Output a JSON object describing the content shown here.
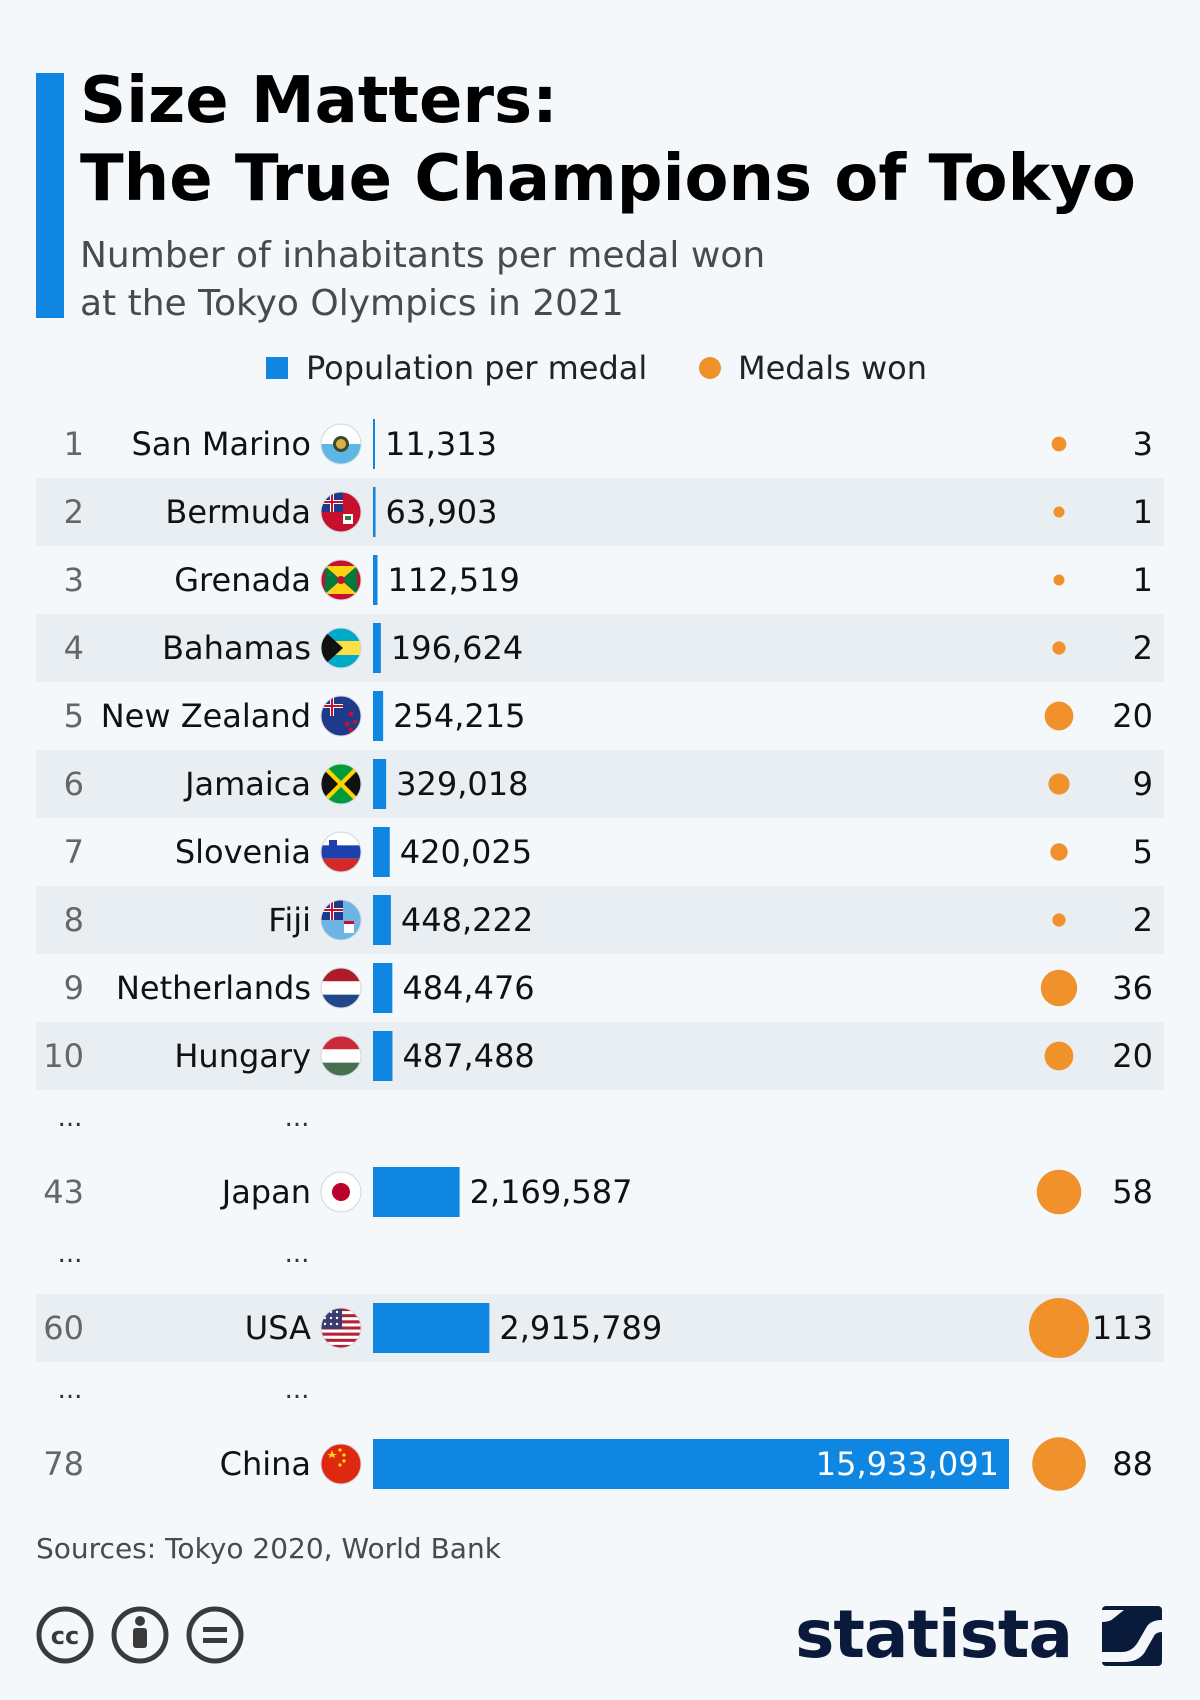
{
  "header": {
    "title_line1": "Size Matters:",
    "title_line2": "The True Champions of Tokyo",
    "subtitle_line1": "Number of inhabitants per medal won",
    "subtitle_line2": "at the Tokyo Olympics in 2021"
  },
  "legend": {
    "population": "Population per medal",
    "medals": "Medals won"
  },
  "colors": {
    "bar": "#0f86e2",
    "medal": "#f0912c",
    "row_alt": "#e9eef3"
  },
  "ellipsis": "...",
  "chart_data": {
    "type": "bar",
    "orientation": "horizontal",
    "title": "Size Matters: The True Champions of Tokyo",
    "subtitle": "Number of inhabitants per medal won at the Tokyo Olympics in 2021",
    "series": [
      {
        "name": "Population per medal"
      },
      {
        "name": "Medals won"
      }
    ],
    "rows": [
      {
        "rank": "1",
        "country": "San Marino",
        "flag": "san-marino-flag",
        "population_per_medal": 11313,
        "value_label": "11,313",
        "medals": 3
      },
      {
        "rank": "2",
        "country": "Bermuda",
        "flag": "bermuda-flag",
        "population_per_medal": 63903,
        "value_label": "63,903",
        "medals": 1
      },
      {
        "rank": "3",
        "country": "Grenada",
        "flag": "grenada-flag",
        "population_per_medal": 112519,
        "value_label": "112,519",
        "medals": 1
      },
      {
        "rank": "4",
        "country": "Bahamas",
        "flag": "bahamas-flag",
        "population_per_medal": 196624,
        "value_label": "196,624",
        "medals": 2
      },
      {
        "rank": "5",
        "country": "New Zealand",
        "flag": "new-zealand-flag",
        "population_per_medal": 254215,
        "value_label": "254,215",
        "medals": 20
      },
      {
        "rank": "6",
        "country": "Jamaica",
        "flag": "jamaica-flag",
        "population_per_medal": 329018,
        "value_label": "329,018",
        "medals": 9
      },
      {
        "rank": "7",
        "country": "Slovenia",
        "flag": "slovenia-flag",
        "population_per_medal": 420025,
        "value_label": "420,025",
        "medals": 5
      },
      {
        "rank": "8",
        "country": "Fiji",
        "flag": "fiji-flag",
        "population_per_medal": 448222,
        "value_label": "448,222",
        "medals": 2
      },
      {
        "rank": "9",
        "country": "Netherlands",
        "flag": "netherlands-flag",
        "population_per_medal": 484476,
        "value_label": "484,476",
        "medals": 36
      },
      {
        "rank": "10",
        "country": "Hungary",
        "flag": "hungary-flag",
        "population_per_medal": 487488,
        "value_label": "487,488",
        "medals": 20
      },
      {
        "ellipsis": true
      },
      {
        "rank": "43",
        "country": "Japan",
        "flag": "japan-flag",
        "population_per_medal": 2169587,
        "value_label": "2,169,587",
        "medals": 58
      },
      {
        "ellipsis": true
      },
      {
        "rank": "60",
        "country": "USA",
        "flag": "usa-flag",
        "population_per_medal": 2915789,
        "value_label": "2,915,789",
        "medals": 113
      },
      {
        "ellipsis": true
      },
      {
        "rank": "78",
        "country": "China",
        "flag": "china-flag",
        "population_per_medal": 15933091,
        "value_label": "15,933,091",
        "medals": 88
      }
    ],
    "xlim": [
      0,
      15933091
    ],
    "grid": false,
    "legend_position": "top-center"
  },
  "footer": {
    "source": "Sources: Tokyo 2020, World Bank",
    "brand": "statista",
    "license_icons": [
      "cc-icon",
      "attribution-icon",
      "no-derivatives-icon"
    ]
  }
}
